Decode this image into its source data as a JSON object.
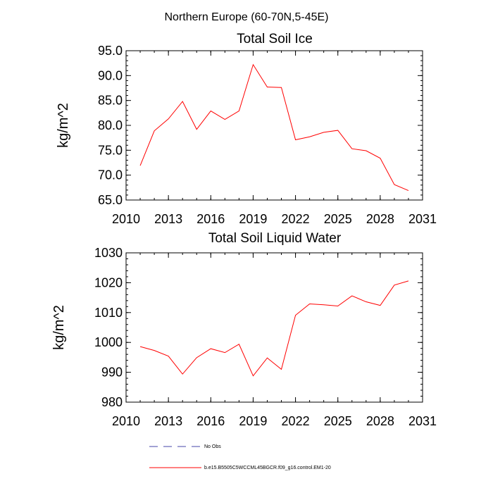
{
  "figure_title": "Northern Europe (60-70N,5-45E)",
  "chart_data": [
    {
      "type": "line",
      "title": "Total Soil Ice",
      "xlabel": "",
      "ylabel": "kg/m^2",
      "xlim": [
        2010,
        2031
      ],
      "ylim": [
        65,
        95
      ],
      "xticks": [
        2010,
        2013,
        2016,
        2019,
        2022,
        2025,
        2028,
        2031
      ],
      "yticks": [
        65,
        70,
        75,
        80,
        85,
        90,
        95
      ],
      "ytick_labels": [
        "65.0",
        "70.0",
        "75.0",
        "80.0",
        "85.0",
        "90.0",
        "95.0"
      ],
      "x": [
        2011,
        2012,
        2013,
        2014,
        2015,
        2016,
        2017,
        2018,
        2019,
        2020,
        2021,
        2022,
        2023,
        2024,
        2025,
        2026,
        2027,
        2028,
        2029,
        2030
      ],
      "series": [
        {
          "name": "b.e15.B5505C5WCCML45BGCR.f09_g16.control.EM1-20",
          "color": "#ff0000",
          "values": [
            71.9,
            78.9,
            81.3,
            84.8,
            79.2,
            82.9,
            81.2,
            82.9,
            92.2,
            87.7,
            87.6,
            77.1,
            77.7,
            78.6,
            79.0,
            75.3,
            74.9,
            73.4,
            68.1,
            66.9
          ]
        }
      ]
    },
    {
      "type": "line",
      "title": "Total Soil Liquid Water",
      "xlabel": "",
      "ylabel": "kg/m^2",
      "xlim": [
        2010,
        2031
      ],
      "ylim": [
        980,
        1030
      ],
      "xticks": [
        2010,
        2013,
        2016,
        2019,
        2022,
        2025,
        2028,
        2031
      ],
      "yticks": [
        980,
        990,
        1000,
        1010,
        1020,
        1030
      ],
      "ytick_labels": [
        "980",
        "990",
        "1000",
        "1010",
        "1020",
        "1030"
      ],
      "x": [
        2011,
        2012,
        2013,
        2014,
        2015,
        2016,
        2017,
        2018,
        2019,
        2020,
        2021,
        2022,
        2023,
        2024,
        2025,
        2026,
        2027,
        2028,
        2029,
        2030
      ],
      "series": [
        {
          "name": "b.e15.B5505C5WCCML45BGCR.f09_g16.control.EM1-20",
          "color": "#ff0000",
          "values": [
            998.6,
            997.3,
            995.4,
            989.4,
            994.9,
            997.9,
            996.6,
            999.4,
            988.8,
            994.8,
            991.0,
            1009.1,
            1012.9,
            1012.6,
            1012.2,
            1015.6,
            1013.6,
            1012.4,
            1019.2,
            1020.6
          ]
        }
      ]
    }
  ],
  "legend": [
    {
      "label": "No Obs",
      "style": "dashed",
      "color": "#4444aa"
    },
    {
      "label": "b.e15.B5505C5WCCML45BGCR.f09_g16.control.EM1-20",
      "style": "solid",
      "color": "#ff0000"
    }
  ]
}
